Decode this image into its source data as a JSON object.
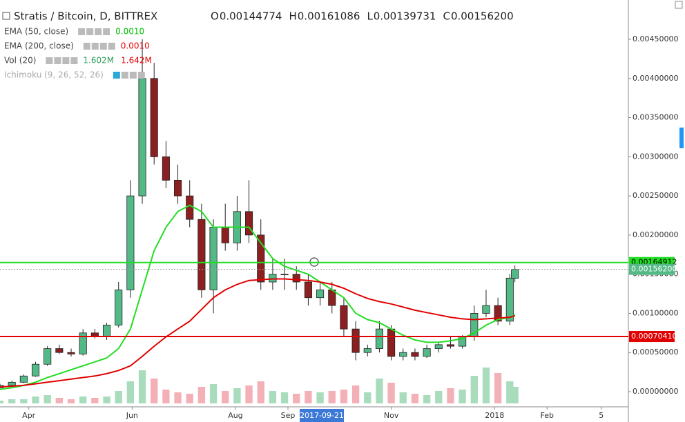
{
  "chart_data": {
    "type": "candlestick",
    "title": "Stratis / Bitcoin, D, BITTREX",
    "ohlc_header": [
      {
        "key": "O",
        "value": "0.00144774"
      },
      {
        "key": "H",
        "value": "0.00161086"
      },
      {
        "key": "L",
        "value": "0.00139731"
      },
      {
        "key": "C",
        "value": "0.00156200"
      }
    ],
    "indicators": [
      {
        "name": "EMA (50, close)",
        "values": [
          "0.0010"
        ],
        "colors": [
          "#00c000"
        ]
      },
      {
        "name": "EMA (200, close)",
        "values": [
          "0.0010"
        ],
        "colors": [
          "#e00000"
        ]
      },
      {
        "name": "Vol (20)",
        "values": [
          "1.602M",
          "1.642M"
        ],
        "colors": [
          "#2e9e5a",
          "#e00000"
        ]
      },
      {
        "name": "Ichimoku (9, 26, 52, 26)",
        "values": [],
        "colors": []
      }
    ],
    "x": [
      "2017-03-15",
      "2017-03-22",
      "2017-03-29",
      "2017-04-05",
      "2017-04-12",
      "2017-04-19",
      "2017-04-26",
      "2017-05-03",
      "2017-05-10",
      "2017-05-17",
      "2017-05-24",
      "2017-05-31",
      "2017-06-07",
      "2017-06-14",
      "2017-06-21",
      "2017-06-28",
      "2017-07-05",
      "2017-07-12",
      "2017-07-19",
      "2017-07-26",
      "2017-08-02",
      "2017-08-09",
      "2017-08-16",
      "2017-08-23",
      "2017-08-30",
      "2017-09-06",
      "2017-09-13",
      "2017-09-20",
      "2017-09-27",
      "2017-10-04",
      "2017-10-11",
      "2017-10-18",
      "2017-10-25",
      "2017-11-01",
      "2017-11-08",
      "2017-11-15",
      "2017-11-22",
      "2017-11-29",
      "2017-12-06",
      "2017-12-13",
      "2017-12-20",
      "2017-12-27",
      "2018-01-03",
      "2018-01-10",
      "2018-01-13"
    ],
    "open": [
      5e-05,
      8e-05,
      0.00012,
      0.0002,
      0.00035,
      0.00055,
      0.0005,
      0.00048,
      0.00075,
      0.0007,
      0.00085,
      0.0013,
      0.0025,
      0.004,
      0.003,
      0.0027,
      0.0025,
      0.0022,
      0.0013,
      0.0021,
      0.0019,
      0.0023,
      0.002,
      0.0014,
      0.0015,
      0.0015,
      0.0014,
      0.0012,
      0.0013,
      0.0011,
      0.0008,
      0.0005,
      0.00055,
      0.0008,
      0.00045,
      0.0005,
      0.00045,
      0.00055,
      0.0006,
      0.00058,
      0.0007,
      0.001,
      0.0011,
      0.0009,
      0.00144774
    ],
    "high": [
      0.0001,
      0.00014,
      0.00022,
      0.00038,
      0.00058,
      0.0006,
      0.00055,
      0.0008,
      0.0008,
      0.00088,
      0.0014,
      0.0027,
      0.0045,
      0.0042,
      0.0032,
      0.0029,
      0.0027,
      0.0024,
      0.0022,
      0.0024,
      0.0025,
      0.0027,
      0.0022,
      0.0017,
      0.0017,
      0.0016,
      0.0015,
      0.0014,
      0.0014,
      0.0012,
      0.0009,
      0.0006,
      0.0009,
      0.00085,
      0.00055,
      0.00055,
      0.0006,
      0.00062,
      0.0007,
      0.00072,
      0.0011,
      0.0013,
      0.0012,
      0.0015,
      0.00161086
    ],
    "low": [
      4e-05,
      7e-05,
      0.00011,
      0.00019,
      0.00033,
      0.00048,
      0.00045,
      0.00046,
      0.00068,
      0.00066,
      0.00082,
      0.0012,
      0.0024,
      0.0029,
      0.0026,
      0.0024,
      0.0021,
      0.0012,
      0.001,
      0.0018,
      0.0018,
      0.0019,
      0.0013,
      0.0013,
      0.0013,
      0.0013,
      0.0011,
      0.0011,
      0.001,
      0.0007,
      0.0004,
      0.00045,
      0.0005,
      0.0004,
      0.0004,
      0.0004,
      0.00043,
      0.0005,
      0.00055,
      0.00055,
      0.00065,
      0.00095,
      0.00085,
      0.00085,
      0.00139731
    ],
    "close": [
      8e-05,
      0.00012,
      0.0002,
      0.00035,
      0.00055,
      0.0005,
      0.00048,
      0.00075,
      0.0007,
      0.00085,
      0.0013,
      0.0025,
      0.004,
      0.003,
      0.0027,
      0.0025,
      0.0022,
      0.0013,
      0.0021,
      0.0019,
      0.0023,
      0.002,
      0.0014,
      0.0015,
      0.0015,
      0.0014,
      0.0012,
      0.0013,
      0.0011,
      0.0008,
      0.0005,
      0.00055,
      0.0008,
      0.00045,
      0.0005,
      0.00045,
      0.00055,
      0.0006,
      0.00058,
      0.0007,
      0.001,
      0.0011,
      0.0009,
      0.00145,
      0.001562
    ],
    "volume": [
      0.2,
      0.3,
      0.3,
      0.5,
      0.6,
      0.4,
      0.3,
      0.5,
      0.4,
      0.5,
      0.9,
      1.6,
      2.4,
      1.8,
      1.0,
      0.8,
      0.7,
      1.2,
      1.4,
      0.9,
      1.1,
      1.3,
      1.6,
      0.9,
      0.8,
      0.7,
      0.9,
      0.8,
      0.9,
      1.0,
      1.3,
      0.8,
      1.8,
      1.5,
      0.8,
      0.7,
      0.6,
      0.9,
      1.1,
      1.0,
      2.0,
      2.6,
      2.2,
      1.6,
      1.2
    ],
    "up_color": "#53b987",
    "down_color": "#8b2020",
    "series": [
      {
        "name": "EMA (50, close)",
        "color": "#22dd22",
        "values": [
          3e-05,
          5e-05,
          8e-05,
          0.00012,
          0.00018,
          0.00023,
          0.00028,
          0.00033,
          0.00038,
          0.00043,
          0.00055,
          0.0008,
          0.0013,
          0.0018,
          0.0021,
          0.0023,
          0.00238,
          0.0023,
          0.0021,
          0.0021,
          0.0021,
          0.0021,
          0.0019,
          0.0017,
          0.0016,
          0.00155,
          0.0015,
          0.0014,
          0.0013,
          0.0012,
          0.001,
          0.00092,
          0.00088,
          0.0008,
          0.00072,
          0.00066,
          0.00063,
          0.00063,
          0.00065,
          0.00068,
          0.00075,
          0.00085,
          0.00092,
          0.00095,
          0.00098
        ]
      },
      {
        "name": "EMA (200, close)",
        "color": "#e00000",
        "values": [
          6e-05,
          7e-05,
          8e-05,
          0.0001,
          0.00012,
          0.00014,
          0.00016,
          0.00018,
          0.0002,
          0.00023,
          0.00027,
          0.00033,
          0.00045,
          0.00058,
          0.0007,
          0.0008,
          0.0009,
          0.00105,
          0.0012,
          0.0013,
          0.00137,
          0.00142,
          0.00143,
          0.00144,
          0.00144,
          0.00143,
          0.00142,
          0.0014,
          0.00137,
          0.00132,
          0.00125,
          0.00119,
          0.00115,
          0.00112,
          0.00108,
          0.00104,
          0.00101,
          0.00098,
          0.00095,
          0.00093,
          0.00092,
          0.00093,
          0.00094,
          0.00095,
          0.00097
        ]
      }
    ],
    "price_lines": [
      {
        "value": 0.00164912,
        "label": "0.00164912",
        "color": "#22dd22",
        "style": "solid"
      },
      {
        "value": 0.001562,
        "label": "0.00156200",
        "color": "#53b987",
        "style": "dotted"
      },
      {
        "value": 0.0007041,
        "label": "0.00070410",
        "color": "#e00000",
        "style": "solid"
      }
    ],
    "xlim": [
      "2017-03-15",
      "2018-03-21"
    ],
    "xticks": [
      {
        "value": "2017-04-01",
        "label": "Apr"
      },
      {
        "value": "2017-06-01",
        "label": "Jun"
      },
      {
        "value": "2017-08-01",
        "label": "Aug"
      },
      {
        "value": "2017-09-01",
        "label": "Sep"
      },
      {
        "value": "2017-11-01",
        "label": "Nov"
      },
      {
        "value": "2018-01-01",
        "label": "2018"
      },
      {
        "value": "2018-02-01",
        "label": "Feb"
      },
      {
        "value": "2018-03-05",
        "label": "5"
      }
    ],
    "cursor_x": {
      "value": "2017-09-21",
      "label": "2017-09-21"
    },
    "ylim": [
      -0.000194,
      0.005002
    ],
    "yticks": [
      {
        "value": 0,
        "label": "0.00000000"
      },
      {
        "value": 0.0005,
        "label": "0.00050000"
      },
      {
        "value": 0.001,
        "label": "0.00100000"
      },
      {
        "value": 0.0015,
        "label": "0.00150000"
      },
      {
        "value": 0.002,
        "label": "0.00200000"
      },
      {
        "value": 0.0025,
        "label": "0.00250000"
      },
      {
        "value": 0.003,
        "label": "0.00300000"
      },
      {
        "value": 0.0035,
        "label": "0.00350000"
      },
      {
        "value": 0.004,
        "label": "0.00400000"
      },
      {
        "value": 0.0045,
        "label": "0.00450000"
      }
    ],
    "vlim": [
      0,
      4
    ],
    "grid": false
  }
}
